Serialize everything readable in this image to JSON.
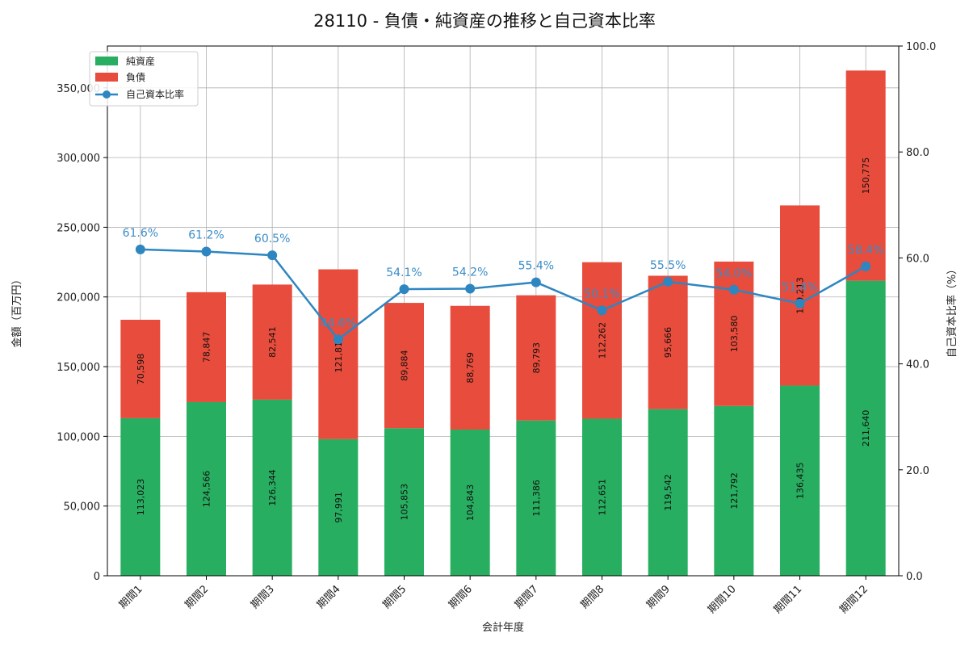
{
  "chart_data": {
    "type": "bar",
    "title": "28110 - 負債・純資産の推移と自己資本比率",
    "xlabel": "会計年度",
    "ylabel": "金額（百万円）",
    "y2label": "自己資本比率（%）",
    "ylim": [
      0,
      380000
    ],
    "y2lim": [
      0,
      100
    ],
    "yticks": [
      "0",
      "50,000",
      "100,000",
      "150,000",
      "200,000",
      "250,000",
      "300,000",
      "350,000"
    ],
    "y2ticks": [
      "0.0",
      "20.0",
      "40.0",
      "60.0",
      "80.0",
      "100.0"
    ],
    "grid": true,
    "legend_position": "top-left",
    "categories": [
      "期間1",
      "期間2",
      "期間3",
      "期間4",
      "期間5",
      "期間6",
      "期間7",
      "期間8",
      "期間9",
      "期間10",
      "期間11",
      "期間12"
    ],
    "series": [
      {
        "name": "純資産",
        "kind": "bar",
        "color": "#27ae60",
        "values": [
          113023,
          124566,
          126344,
          97991,
          105853,
          104843,
          111386,
          112651,
          119542,
          121792,
          136435,
          211640
        ],
        "labels": [
          "113,023",
          "124,566",
          "126,344",
          "97,991",
          "105,853",
          "104,843",
          "111,386",
          "112,651",
          "119,542",
          "121,792",
          "136,435",
          "211,640"
        ]
      },
      {
        "name": "負債",
        "kind": "bar",
        "color": "#e74c3c",
        "values": [
          70598,
          78847,
          82541,
          121817,
          89884,
          88769,
          89793,
          112262,
          95666,
          103580,
          129213,
          150775
        ],
        "labels": [
          "70,598",
          "78,847",
          "82,541",
          "121,817",
          "89,884",
          "88,769",
          "89,793",
          "112,262",
          "95,666",
          "103,580",
          "129,213",
          "150,775"
        ]
      },
      {
        "name": "自己資本比率",
        "kind": "line",
        "axis": "right",
        "color": "#2e86c1",
        "values": [
          61.6,
          61.2,
          60.5,
          44.6,
          54.1,
          54.2,
          55.4,
          50.1,
          55.5,
          54.0,
          51.4,
          58.4
        ],
        "labels": [
          "61.6%",
          "61.2%",
          "60.5%",
          "44.6%",
          "54.1%",
          "54.2%",
          "55.4%",
          "50.1%",
          "55.5%",
          "54.0%",
          "51.4%",
          "58.4%"
        ]
      }
    ]
  }
}
